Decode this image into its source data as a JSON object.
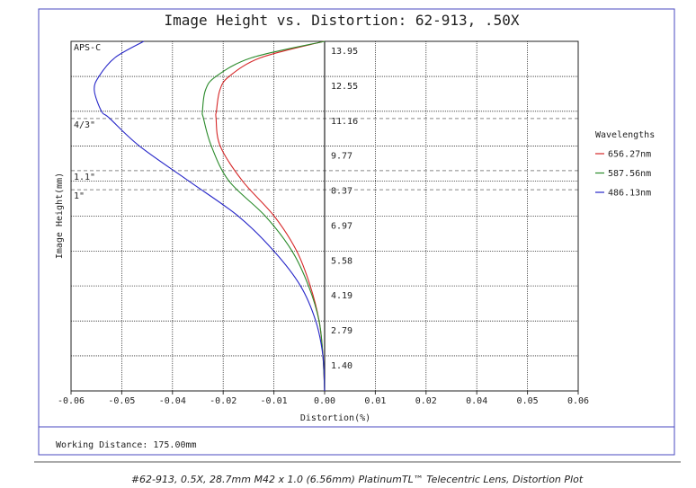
{
  "chart_data": {
    "type": "line",
    "title": "Image Height vs. Distortion: 62-913, .50X",
    "x_label": "Distortion(%)",
    "y_label": "Image Height(mm)",
    "legend_title": "Wavelengths",
    "footer": "Working Distance: 175.00mm",
    "y": [
      0,
      1.4,
      2.79,
      4.19,
      5.58,
      6.97,
      8.37,
      9.77,
      10.9,
      11.16,
      12.0,
      12.55,
      13.3,
      13.95
    ],
    "series": [
      {
        "name": "656.27nm",
        "color": "#d62728",
        "x": [
          0,
          -0.0004,
          -0.0013,
          -0.0034,
          -0.0066,
          -0.0119,
          -0.0194,
          -0.0247,
          -0.0257,
          -0.0256,
          -0.0248,
          -0.0226,
          -0.0151,
          -0.0002
        ]
      },
      {
        "name": "587.56nm",
        "color": "#2a8a2a",
        "x": [
          0,
          -0.0004,
          -0.0013,
          -0.0038,
          -0.0077,
          -0.014,
          -0.0226,
          -0.0268,
          -0.0287,
          -0.0289,
          -0.0282,
          -0.0257,
          -0.0172,
          0
        ]
      },
      {
        "name": "486.13nm",
        "color": "#2626c8",
        "x": [
          0,
          -0.0004,
          -0.0021,
          -0.0057,
          -0.012,
          -0.0204,
          -0.0321,
          -0.0438,
          -0.051,
          -0.0528,
          -0.0545,
          -0.0534,
          -0.0496,
          -0.0428
        ]
      }
    ],
    "sensor_lines": [
      {
        "label": "APS-C",
        "value": 13.95
      },
      {
        "label": "4/3\"",
        "value": 10.87
      },
      {
        "label": "1.1\"",
        "value": 8.79
      },
      {
        "label": "1\"",
        "value": 8.03
      }
    ],
    "xlim": [
      -0.06,
      0.06
    ],
    "xticks": [
      -0.06,
      {
        "value": -0.048,
        "label": "-0.05"
      },
      {
        "value": -0.036,
        "label": "-0.04"
      },
      {
        "value": -0.024,
        "label": "-0.02"
      },
      {
        "value": -0.012,
        "label": "-0.01"
      },
      {
        "value": 0,
        "label": "0.00"
      },
      {
        "value": 0.012,
        "label": "0.01"
      },
      {
        "value": 0.024,
        "label": "0.02"
      },
      {
        "value": 0.036,
        "label": "0.04"
      },
      {
        "value": 0.048,
        "label": "0.05"
      },
      0.06
    ],
    "ylim": [
      0,
      13.95
    ],
    "yticks": [
      {
        "value": 1.4,
        "label": "1.40"
      },
      2.79,
      4.19,
      5.58,
      6.97,
      8.37,
      9.77,
      11.16,
      12.55,
      13.95
    ],
    "grid": true
  },
  "caption": "#62-913, 0.5X, 28.7mm M42 x 1.0 (6.56mm) PlatinumTL™ Telecentric Lens, Distortion Plot"
}
